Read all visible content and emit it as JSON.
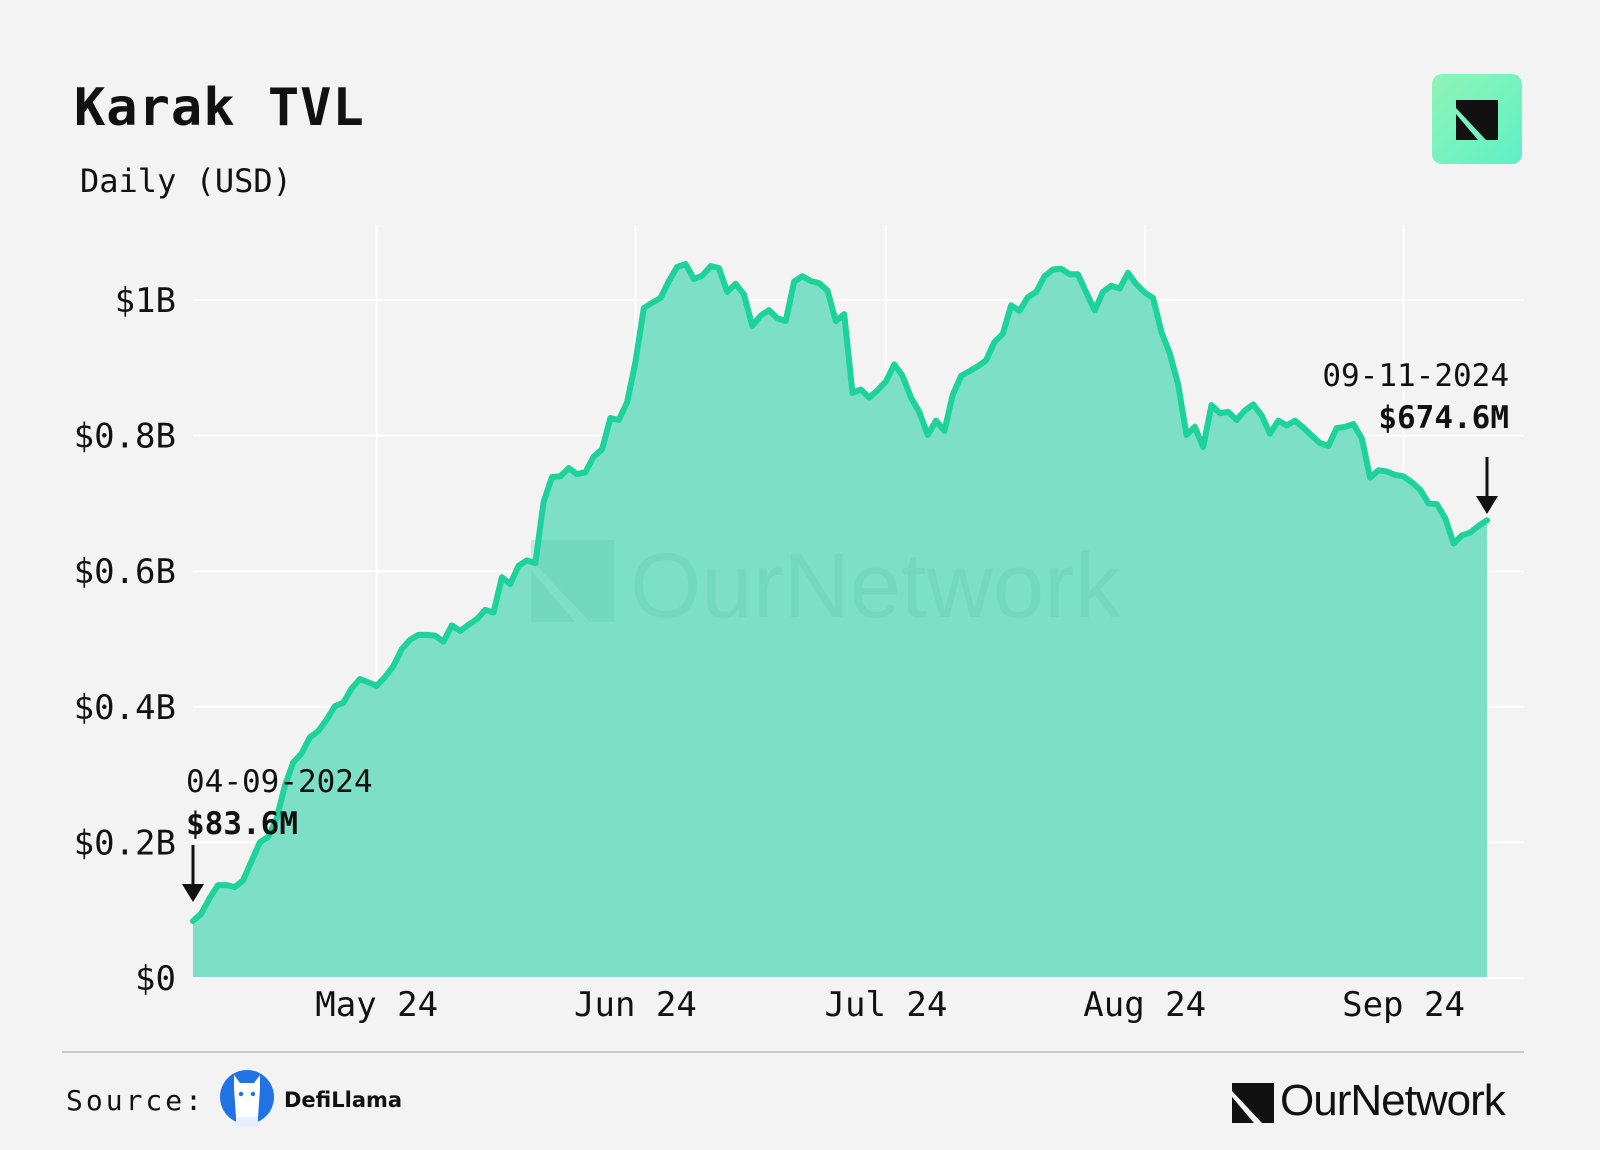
{
  "header": {
    "title": "Karak TVL",
    "subtitle": "Daily (USD)"
  },
  "colors": {
    "line": "#1ed39b",
    "fill": "#7ddfc6",
    "background": "#f3f3f3",
    "grid": "#ffffff",
    "watermark": "#5cc9a9"
  },
  "watermark": "OurNetwork",
  "footer": {
    "source_label": "Source:",
    "source_name": "DefiLlama",
    "brand_name": "OurNetwork"
  },
  "chart_data": {
    "type": "area",
    "title": "Karak TVL",
    "subtitle": "Daily (USD)",
    "x_start": "2024-04-09",
    "x_end": "2024-09-11",
    "x_tick_labels": [
      {
        "date": "2024-05-01",
        "label": "May 24"
      },
      {
        "date": "2024-06-01",
        "label": "Jun 24"
      },
      {
        "date": "2024-07-01",
        "label": "Jul 24"
      },
      {
        "date": "2024-08-01",
        "label": "Aug 24"
      },
      {
        "date": "2024-09-01",
        "label": "Sep 24"
      }
    ],
    "y_ticks": [
      {
        "value": 0,
        "label": "$0"
      },
      {
        "value": 0.2,
        "label": "$0.2B"
      },
      {
        "value": 0.4,
        "label": "$0.4B"
      },
      {
        "value": 0.6,
        "label": "$0.6B"
      },
      {
        "value": 0.8,
        "label": "$0.8B"
      },
      {
        "value": 1.0,
        "label": "$1B"
      }
    ],
    "ylim": [
      0,
      1.1
    ],
    "y_unit": "USD billions",
    "grid": true,
    "series": [
      {
        "points": [
          [
            "2024-04-09",
            0.084
          ],
          [
            "2024-04-10",
            0.095
          ],
          [
            "2024-04-11",
            0.118
          ],
          [
            "2024-04-12",
            0.137
          ],
          [
            "2024-04-13",
            0.137
          ],
          [
            "2024-04-14",
            0.134
          ],
          [
            "2024-04-15",
            0.144
          ],
          [
            "2024-04-16",
            0.172
          ],
          [
            "2024-04-17",
            0.2
          ],
          [
            "2024-04-18",
            0.208
          ],
          [
            "2024-04-19",
            0.235
          ],
          [
            "2024-04-20",
            0.283
          ],
          [
            "2024-04-21",
            0.318
          ],
          [
            "2024-04-22",
            0.331
          ],
          [
            "2024-04-23",
            0.355
          ],
          [
            "2024-04-24",
            0.364
          ],
          [
            "2024-04-25",
            0.381
          ],
          [
            "2024-04-26",
            0.401
          ],
          [
            "2024-04-27",
            0.406
          ],
          [
            "2024-04-28",
            0.427
          ],
          [
            "2024-04-29",
            0.441
          ],
          [
            "2024-04-30",
            0.436
          ],
          [
            "2024-05-01",
            0.431
          ],
          [
            "2024-05-02",
            0.444
          ],
          [
            "2024-05-03",
            0.46
          ],
          [
            "2024-05-04",
            0.485
          ],
          [
            "2024-05-05",
            0.499
          ],
          [
            "2024-05-06",
            0.506
          ],
          [
            "2024-05-07",
            0.506
          ],
          [
            "2024-05-08",
            0.505
          ],
          [
            "2024-05-09",
            0.496
          ],
          [
            "2024-05-10",
            0.52
          ],
          [
            "2024-05-11",
            0.512
          ],
          [
            "2024-05-12",
            0.521
          ],
          [
            "2024-05-13",
            0.529
          ],
          [
            "2024-05-14",
            0.543
          ],
          [
            "2024-05-15",
            0.539
          ],
          [
            "2024-05-16",
            0.591
          ],
          [
            "2024-05-17",
            0.581
          ],
          [
            "2024-05-18",
            0.608
          ],
          [
            "2024-05-19",
            0.616
          ],
          [
            "2024-05-20",
            0.612
          ],
          [
            "2024-05-21",
            0.702
          ],
          [
            "2024-05-22",
            0.739
          ],
          [
            "2024-05-23",
            0.74
          ],
          [
            "2024-05-24",
            0.752
          ],
          [
            "2024-05-25",
            0.743
          ],
          [
            "2024-05-26",
            0.746
          ],
          [
            "2024-05-27",
            0.769
          ],
          [
            "2024-05-28",
            0.78
          ],
          [
            "2024-05-29",
            0.826
          ],
          [
            "2024-05-30",
            0.823
          ],
          [
            "2024-05-31",
            0.849
          ],
          [
            "2024-06-01",
            0.909
          ],
          [
            "2024-06-02",
            0.988
          ],
          [
            "2024-06-03",
            0.996
          ],
          [
            "2024-06-04",
            1.003
          ],
          [
            "2024-06-05",
            1.028
          ],
          [
            "2024-06-06",
            1.049
          ],
          [
            "2024-06-07",
            1.053
          ],
          [
            "2024-06-08",
            1.031
          ],
          [
            "2024-06-09",
            1.036
          ],
          [
            "2024-06-10",
            1.05
          ],
          [
            "2024-06-11",
            1.047
          ],
          [
            "2024-06-12",
            1.012
          ],
          [
            "2024-06-13",
            1.024
          ],
          [
            "2024-06-14",
            1.008
          ],
          [
            "2024-06-15",
            0.962
          ],
          [
            "2024-06-16",
            0.977
          ],
          [
            "2024-06-17",
            0.985
          ],
          [
            "2024-06-18",
            0.973
          ],
          [
            "2024-06-19",
            0.969
          ],
          [
            "2024-06-20",
            1.027
          ],
          [
            "2024-06-21",
            1.035
          ],
          [
            "2024-06-22",
            1.028
          ],
          [
            "2024-06-23",
            1.025
          ],
          [
            "2024-06-24",
            1.014
          ],
          [
            "2024-06-25",
            0.969
          ],
          [
            "2024-06-26",
            0.979
          ],
          [
            "2024-06-27",
            0.863
          ],
          [
            "2024-06-28",
            0.868
          ],
          [
            "2024-06-29",
            0.856
          ],
          [
            "2024-06-30",
            0.867
          ],
          [
            "2024-07-01",
            0.88
          ],
          [
            "2024-07-02",
            0.905
          ],
          [
            "2024-07-03",
            0.888
          ],
          [
            "2024-07-04",
            0.856
          ],
          [
            "2024-07-05",
            0.835
          ],
          [
            "2024-07-06",
            0.801
          ],
          [
            "2024-07-07",
            0.822
          ],
          [
            "2024-07-08",
            0.807
          ],
          [
            "2024-07-09",
            0.86
          ],
          [
            "2024-07-10",
            0.888
          ],
          [
            "2024-07-11",
            0.895
          ],
          [
            "2024-07-12",
            0.902
          ],
          [
            "2024-07-13",
            0.911
          ],
          [
            "2024-07-14",
            0.938
          ],
          [
            "2024-07-15",
            0.95
          ],
          [
            "2024-07-16",
            0.992
          ],
          [
            "2024-07-17",
            0.984
          ],
          [
            "2024-07-18",
            1.004
          ],
          [
            "2024-07-19",
            1.012
          ],
          [
            "2024-07-20",
            1.035
          ],
          [
            "2024-07-21",
            1.045
          ],
          [
            "2024-07-22",
            1.046
          ],
          [
            "2024-07-23",
            1.038
          ],
          [
            "2024-07-24",
            1.038
          ],
          [
            "2024-07-25",
            1.011
          ],
          [
            "2024-07-26",
            0.985
          ],
          [
            "2024-07-27",
            1.012
          ],
          [
            "2024-07-28",
            1.021
          ],
          [
            "2024-07-29",
            1.017
          ],
          [
            "2024-07-30",
            1.04
          ],
          [
            "2024-07-31",
            1.023
          ],
          [
            "2024-08-01",
            1.011
          ],
          [
            "2024-08-02",
            1.003
          ],
          [
            "2024-08-03",
            0.953
          ],
          [
            "2024-08-04",
            0.921
          ],
          [
            "2024-08-05",
            0.876
          ],
          [
            "2024-08-06",
            0.801
          ],
          [
            "2024-08-07",
            0.813
          ],
          [
            "2024-08-08",
            0.783
          ],
          [
            "2024-08-09",
            0.845
          ],
          [
            "2024-08-10",
            0.833
          ],
          [
            "2024-08-11",
            0.835
          ],
          [
            "2024-08-12",
            0.823
          ],
          [
            "2024-08-13",
            0.837
          ],
          [
            "2024-08-14",
            0.846
          ],
          [
            "2024-08-15",
            0.83
          ],
          [
            "2024-08-16",
            0.803
          ],
          [
            "2024-08-17",
            0.822
          ],
          [
            "2024-08-18",
            0.815
          ],
          [
            "2024-08-19",
            0.822
          ],
          [
            "2024-08-20",
            0.812
          ],
          [
            "2024-08-21",
            0.8
          ],
          [
            "2024-08-22",
            0.789
          ],
          [
            "2024-08-23",
            0.785
          ],
          [
            "2024-08-24",
            0.811
          ],
          [
            "2024-08-25",
            0.813
          ],
          [
            "2024-08-26",
            0.817
          ],
          [
            "2024-08-27",
            0.796
          ],
          [
            "2024-08-28",
            0.738
          ],
          [
            "2024-08-29",
            0.749
          ],
          [
            "2024-08-30",
            0.747
          ],
          [
            "2024-08-31",
            0.742
          ],
          [
            "2024-09-01",
            0.74
          ],
          [
            "2024-09-02",
            0.731
          ],
          [
            "2024-09-03",
            0.72
          ],
          [
            "2024-09-04",
            0.7
          ],
          [
            "2024-09-05",
            0.699
          ],
          [
            "2024-09-06",
            0.678
          ],
          [
            "2024-09-07",
            0.641
          ],
          [
            "2024-09-08",
            0.653
          ],
          [
            "2024-09-09",
            0.657
          ],
          [
            "2024-09-10",
            0.667
          ],
          [
            "2024-09-11",
            0.675
          ]
        ]
      }
    ],
    "annotations": [
      {
        "date_label": "04-09-2024",
        "value_label": "$83.6M",
        "date": "2024-04-09",
        "value": 0.0836
      },
      {
        "date_label": "09-11-2024",
        "value_label": "$674.6M",
        "date": "2024-09-11",
        "value": 0.6746
      }
    ]
  }
}
